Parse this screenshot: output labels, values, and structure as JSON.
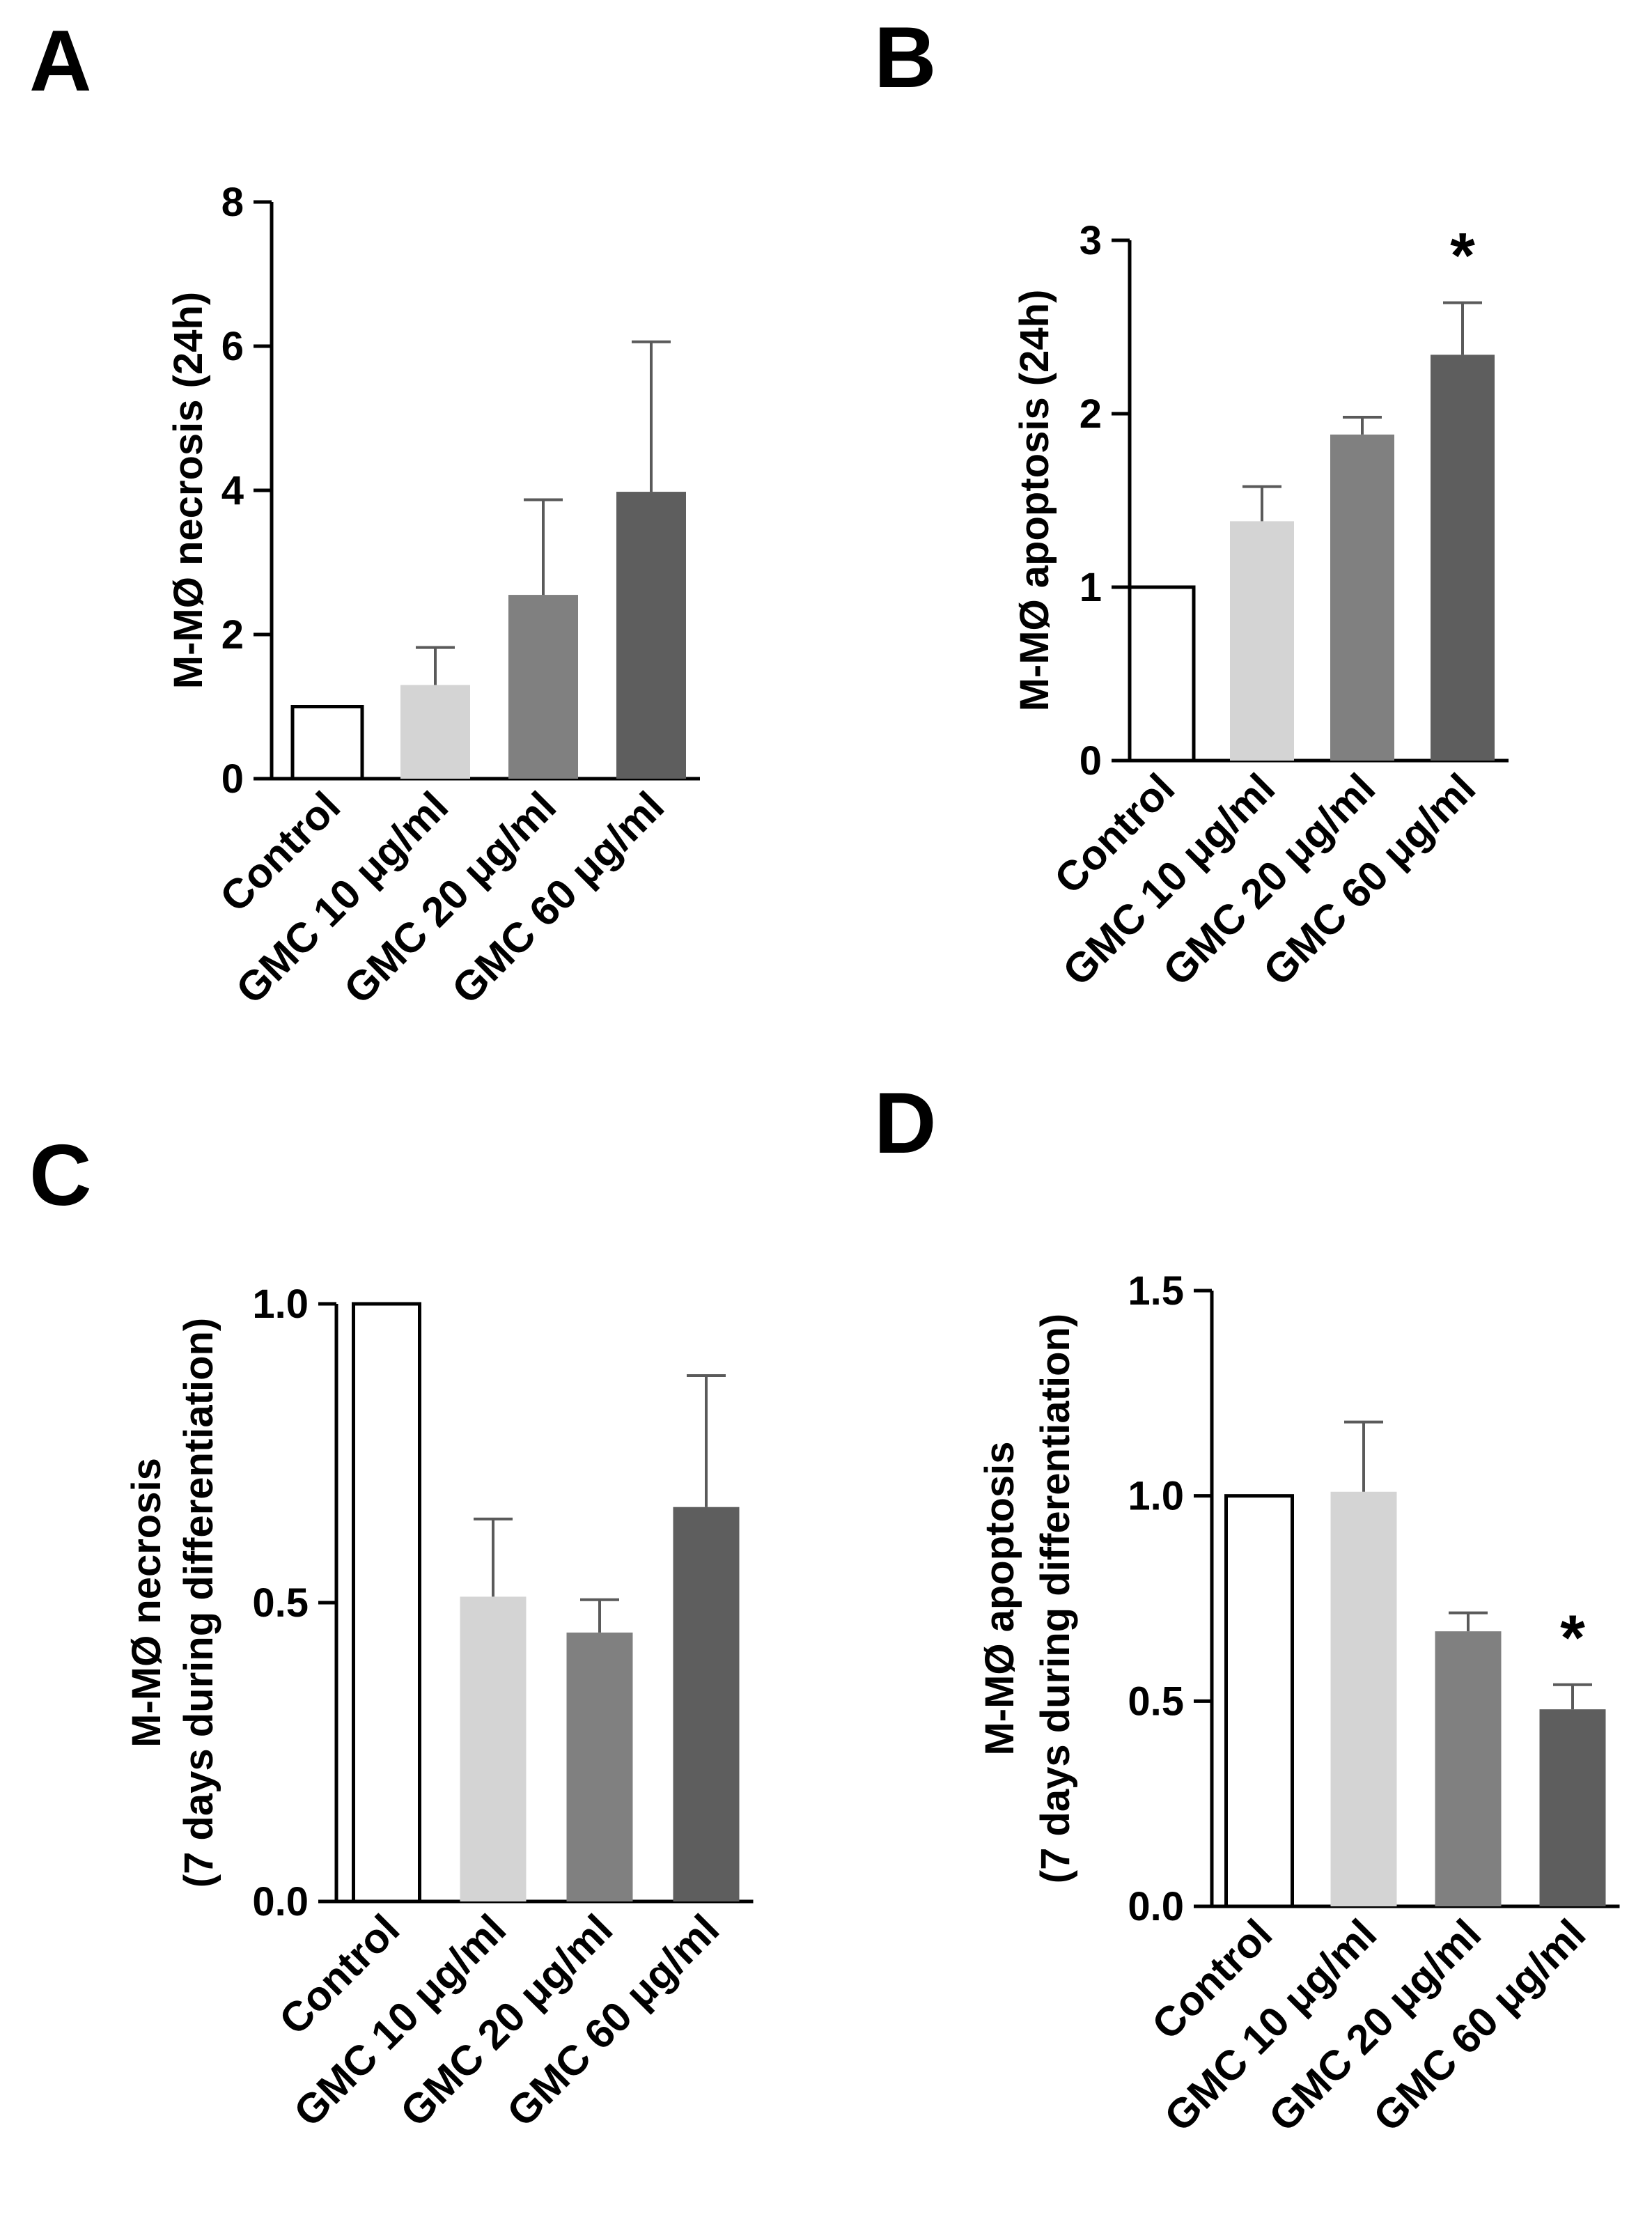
{
  "chart_data": [
    {
      "panel": "A",
      "type": "bar",
      "categories": [
        "Control",
        "GMC 10 μg/ml",
        "GMC 20 μg/ml",
        "GMC 60 μg/ml"
      ],
      "values": [
        1.0,
        1.3,
        2.55,
        3.98
      ],
      "errors": [
        0,
        0.52,
        1.32,
        2.08
      ],
      "colors": [
        "#ffffff",
        "#d4d4d4",
        "#808080",
        "#5e5e5e"
      ],
      "significance": [
        "",
        "",
        "",
        ""
      ],
      "ylabel": "M-MØ necrosis  (24h)",
      "ylim": [
        0,
        8
      ],
      "yticks": [
        0,
        2,
        4,
        6,
        8
      ],
      "ytick_labels": [
        "0",
        "2",
        "4",
        "6",
        "8"
      ]
    },
    {
      "panel": "B",
      "type": "bar",
      "categories": [
        "Control",
        "GMC 10 μg/ml",
        "GMC 20 μg/ml",
        "GMC 60 μg/ml"
      ],
      "values": [
        1.0,
        1.38,
        1.88,
        2.34
      ],
      "errors": [
        0,
        0.2,
        0.1,
        0.3
      ],
      "colors": [
        "#ffffff",
        "#d4d4d4",
        "#808080",
        "#5e5e5e"
      ],
      "significance": [
        "",
        "",
        "",
        "*"
      ],
      "ylabel": "M-MØ apoptosis (24h)",
      "ylim": [
        0,
        3
      ],
      "yticks": [
        0,
        1,
        2,
        3
      ],
      "ytick_labels": [
        "0",
        "1",
        "2",
        "3"
      ]
    },
    {
      "panel": "C",
      "type": "bar",
      "categories": [
        "Control",
        "GMC 10 μg/ml",
        "GMC 20 μg/ml",
        "GMC 60 μg/ml"
      ],
      "values": [
        1.0,
        0.51,
        0.45,
        0.66
      ],
      "errors": [
        0,
        0.13,
        0.055,
        0.22
      ],
      "colors": [
        "#ffffff",
        "#d4d4d4",
        "#808080",
        "#5e5e5e"
      ],
      "significance": [
        "",
        "",
        "",
        ""
      ],
      "ylabel_lines": [
        "M-MØ necrosis",
        "(7 days during differentiation)"
      ],
      "ylim": [
        0,
        1.0
      ],
      "yticks": [
        0,
        0.5,
        1.0
      ],
      "ytick_labels": [
        "0.0",
        "0.5",
        "1.0"
      ]
    },
    {
      "panel": "D",
      "type": "bar",
      "categories": [
        "Control",
        "GMC 10 μg/ml",
        "GMC 20 μg/ml",
        "GMC 60 μg/ml"
      ],
      "values": [
        1.0,
        1.01,
        0.67,
        0.48
      ],
      "errors": [
        0,
        0.17,
        0.045,
        0.06
      ],
      "colors": [
        "#ffffff",
        "#d4d4d4",
        "#808080",
        "#5e5e5e"
      ],
      "significance": [
        "",
        "",
        "",
        "*"
      ],
      "ylabel_lines": [
        "M-MØ apoptosis",
        "(7 days during differentiation)"
      ],
      "ylim": [
        0,
        1.5
      ],
      "yticks": [
        0,
        0.5,
        1.0,
        1.5
      ],
      "ytick_labels": [
        "0.0",
        "0.5",
        "1.0",
        "1.5"
      ]
    }
  ]
}
